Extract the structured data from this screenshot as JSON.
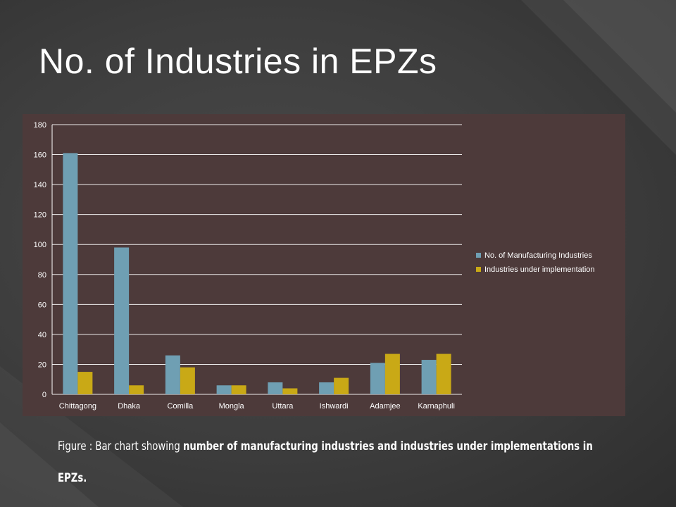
{
  "slide": {
    "title": "No. of Industries in EPZs",
    "caption_prefix": "Figure : Bar chart showing ",
    "caption_bold": "number of manufacturing industries and industries under implementations in EPZs."
  },
  "colors": {
    "panel": "#4d3a3a",
    "series_1": "#6f9fb3",
    "series_2": "#c9a916",
    "text": "#ffffff"
  },
  "chart_data": {
    "type": "bar",
    "categories": [
      "Chittagong",
      "Dhaka",
      "Comilla",
      "Mongla",
      "Uttara",
      "Ishwardi",
      "Adamjee",
      "Karnaphuli"
    ],
    "series": [
      {
        "name": "No. of Manufacturing Industries",
        "values": [
          161,
          98,
          26,
          6,
          8,
          8,
          21,
          23
        ]
      },
      {
        "name": "Industries under implementation",
        "values": [
          15,
          6,
          18,
          6,
          4,
          11,
          27,
          27
        ]
      }
    ],
    "ylim": [
      0,
      180
    ],
    "yticks": [
      0,
      20,
      40,
      60,
      80,
      100,
      120,
      140,
      160,
      180
    ],
    "grid": true,
    "legend_position": "right"
  }
}
